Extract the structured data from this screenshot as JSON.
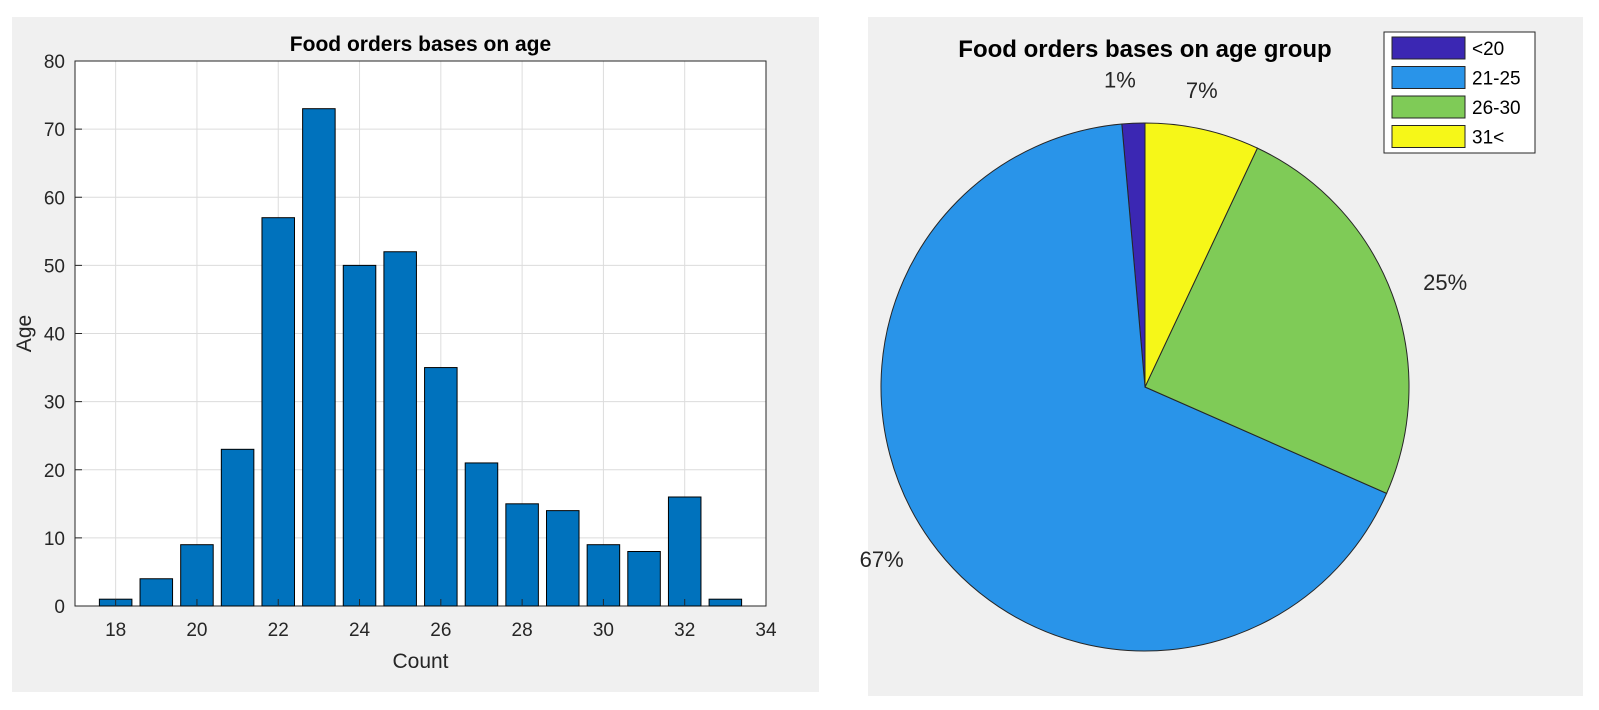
{
  "chart_data": [
    {
      "type": "bar",
      "title": "Food orders bases on age",
      "xlabel": "Count",
      "ylabel": "Age",
      "x": [
        18,
        19,
        20,
        21,
        22,
        23,
        24,
        25,
        26,
        27,
        28,
        29,
        30,
        31,
        32,
        33
      ],
      "values": [
        1,
        4,
        9,
        23,
        57,
        73,
        50,
        52,
        35,
        21,
        15,
        14,
        9,
        8,
        16,
        1
      ],
      "xlim": [
        17,
        34
      ],
      "ylim": [
        0,
        80
      ],
      "xticks": [
        "18",
        "20",
        "22",
        "24",
        "26",
        "28",
        "30",
        "32",
        "34"
      ],
      "yticks": [
        "0",
        "10",
        "20",
        "30",
        "40",
        "50",
        "60",
        "70",
        "80"
      ],
      "grid": true,
      "color": "#0072bd"
    },
    {
      "type": "pie",
      "title": "Food orders bases on age group",
      "slices": [
        {
          "label": "<20",
          "percent_label": "1%",
          "value": 1.4,
          "color": "#3b27b3"
        },
        {
          "label": "21-25",
          "percent_label": "67%",
          "value": 67,
          "color": "#2994e9"
        },
        {
          "label": "26-30",
          "percent_label": "25%",
          "value": 24.6,
          "color": "#7fcb57"
        },
        {
          "label": "31<",
          "percent_label": "7%",
          "value": 7,
          "color": "#f6f718"
        }
      ],
      "legend_position": "top-right"
    }
  ]
}
